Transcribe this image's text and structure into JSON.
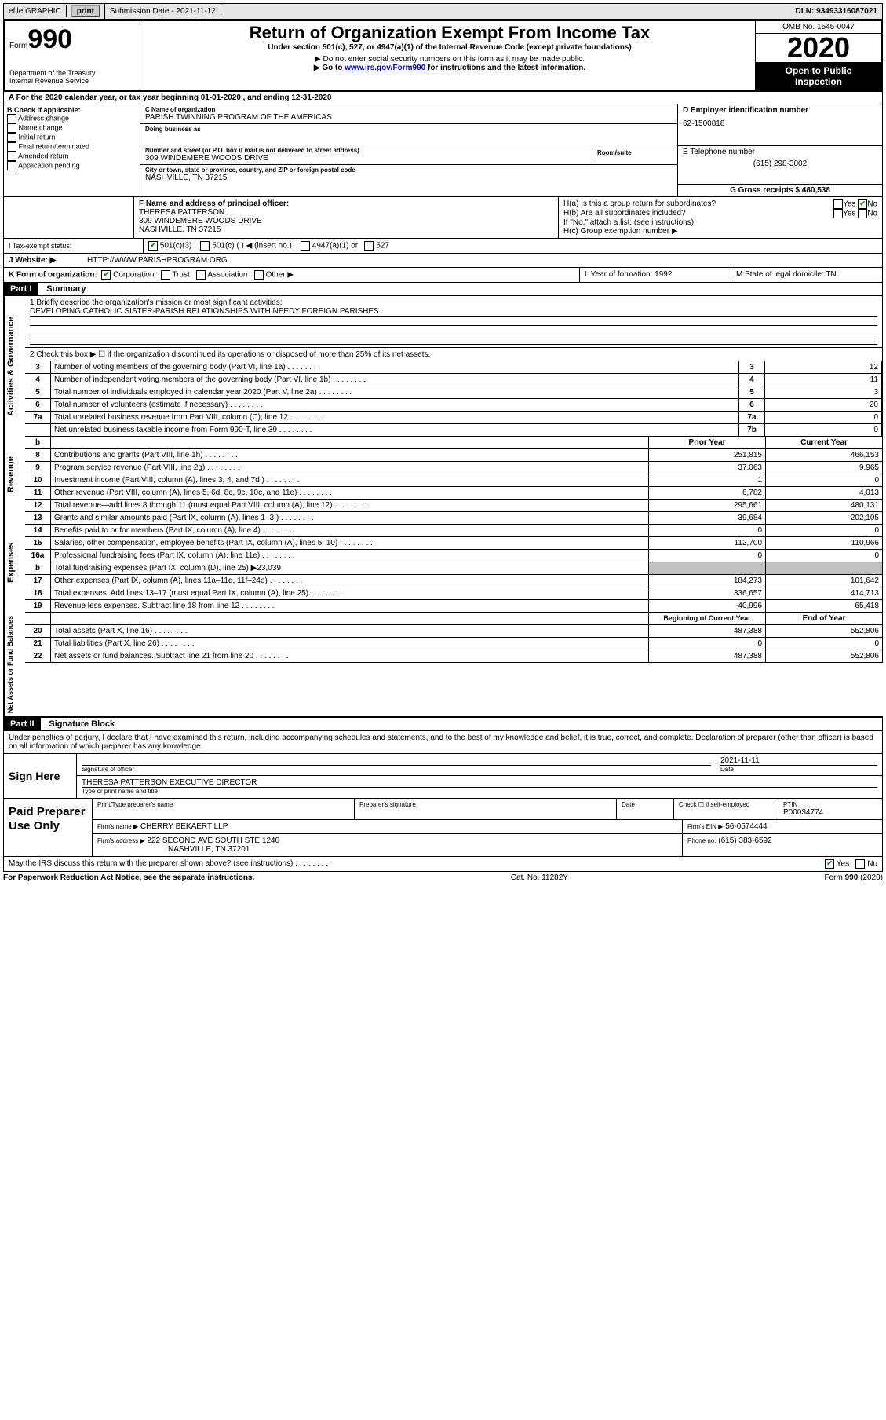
{
  "header_bar": {
    "efile_label": "efile GRAPHIC",
    "print_btn": "print",
    "submission_label": "Submission Date - 2021-11-12",
    "dln": "DLN: 93493316087021"
  },
  "form_header": {
    "form_word": "Form",
    "form_number": "990",
    "dept": "Department of the Treasury",
    "irs": "Internal Revenue Service",
    "title": "Return of Organization Exempt From Income Tax",
    "subtitle": "Under section 501(c), 527, or 4947(a)(1) of the Internal Revenue Code (except private foundations)",
    "note1": "▶ Do not enter social security numbers on this form as it may be made public.",
    "note2_pre": "▶ Go to ",
    "note2_link": "www.irs.gov/Form990",
    "note2_post": " for instructions and the latest information.",
    "omb": "OMB No. 1545-0047",
    "year": "2020",
    "inspection1": "Open to Public",
    "inspection2": "Inspection"
  },
  "row_a": "A   For the 2020 calendar year, or tax year beginning 01-01-2020    , and ending 12-31-2020",
  "check_b": {
    "title": "B Check if applicable:",
    "items": [
      "Address change",
      "Name change",
      "Initial return",
      "Final return/terminated",
      "Amended return",
      "Application pending"
    ]
  },
  "name_block": {
    "c_label": "C Name of organization",
    "c_value": "PARISH TWINNING PROGRAM OF THE AMERICAS",
    "dba_label": "Doing business as",
    "addr_label": "Number and street (or P.O. box if mail is not delivered to street address)",
    "room_label": "Room/suite",
    "addr_value": "309 WINDEMERE WOODS DRIVE",
    "city_label": "City or town, state or province, country, and ZIP or foreign postal code",
    "city_value": "NASHVILLE, TN  37215"
  },
  "right_block": {
    "d_label": "D Employer identification number",
    "d_value": "62-1500818",
    "e_label": "E Telephone number",
    "e_value": "(615) 298-3002",
    "g_label": "G Gross receipts $ 480,538"
  },
  "officer": {
    "f_label": "F Name and address of principal officer:",
    "name": "THERESA PATTERSON",
    "addr": "309 WINDEMERE WOODS DRIVE",
    "city": "NASHVILLE, TN  37215"
  },
  "h_block": {
    "ha": "H(a)  Is this a group return for subordinates?",
    "hb": "H(b)  Are all subordinates included?",
    "hb_note": "If \"No,\" attach a list. (see instructions)",
    "hc": "H(c)  Group exemption number ▶",
    "yes": "Yes",
    "no": "No"
  },
  "tax_status": {
    "i_label": "I   Tax-exempt status:",
    "opts": [
      "501(c)(3)",
      "501(c) (  ) ◀ (insert no.)",
      "4947(a)(1) or",
      "527"
    ]
  },
  "website": {
    "j_label": "J   Website: ▶",
    "value": "HTTP://WWW.PARISHPROGRAM.ORG"
  },
  "row_k": {
    "k_label": "K Form of organization:",
    "opts": [
      "Corporation",
      "Trust",
      "Association",
      "Other ▶"
    ],
    "l_label": "L Year of formation: 1992",
    "m_label": "M State of legal domicile: TN"
  },
  "part1": {
    "header": "Part I",
    "title": "Summary",
    "line1_label": "1   Briefly describe the organization's mission or most significant activities:",
    "line1_value": "DEVELOPING CATHOLIC SISTER-PARISH RELATIONSHIPS WITH NEEDY FOREIGN PARISHES.",
    "line2": "2   Check this box ▶ ☐  if the organization discontinued its operations or disposed of more than 25% of its net assets.",
    "gov": {
      "section": "Activities & Governance",
      "rows": [
        {
          "n": "3",
          "d": "Number of voting members of the governing body (Part VI, line 1a)",
          "l": "3",
          "v": "12"
        },
        {
          "n": "4",
          "d": "Number of independent voting members of the governing body (Part VI, line 1b)",
          "l": "4",
          "v": "11"
        },
        {
          "n": "5",
          "d": "Total number of individuals employed in calendar year 2020 (Part V, line 2a)",
          "l": "5",
          "v": "3"
        },
        {
          "n": "6",
          "d": "Total number of volunteers (estimate if necessary)",
          "l": "6",
          "v": "20"
        },
        {
          "n": "7a",
          "d": "Total unrelated business revenue from Part VIII, column (C), line 12",
          "l": "7a",
          "v": "0"
        },
        {
          "n": "",
          "d": "Net unrelated business taxable income from Form 990-T, line 39",
          "l": "7b",
          "v": "0"
        }
      ]
    },
    "rev": {
      "section": "Revenue",
      "header_b": "b",
      "header_prior": "Prior Year",
      "header_curr": "Current Year",
      "rows": [
        {
          "n": "8",
          "d": "Contributions and grants (Part VIII, line 1h)",
          "p": "251,815",
          "c": "466,153"
        },
        {
          "n": "9",
          "d": "Program service revenue (Part VIII, line 2g)",
          "p": "37,063",
          "c": "9,965"
        },
        {
          "n": "10",
          "d": "Investment income (Part VIII, column (A), lines 3, 4, and 7d )",
          "p": "1",
          "c": "0"
        },
        {
          "n": "11",
          "d": "Other revenue (Part VIII, column (A), lines 5, 6d, 8c, 9c, 10c, and 11e)",
          "p": "6,782",
          "c": "4,013"
        },
        {
          "n": "12",
          "d": "Total revenue—add lines 8 through 11 (must equal Part VIII, column (A), line 12)",
          "p": "295,661",
          "c": "480,131"
        }
      ]
    },
    "exp": {
      "section": "Expenses",
      "rows": [
        {
          "n": "13",
          "d": "Grants and similar amounts paid (Part IX, column (A), lines 1–3 )",
          "p": "39,684",
          "c": "202,105"
        },
        {
          "n": "14",
          "d": "Benefits paid to or for members (Part IX, column (A), line 4)",
          "p": "0",
          "c": "0"
        },
        {
          "n": "15",
          "d": "Salaries, other compensation, employee benefits (Part IX, column (A), lines 5–10)",
          "p": "112,700",
          "c": "110,966"
        },
        {
          "n": "16a",
          "d": "Professional fundraising fees (Part IX, column (A), line 11e)",
          "p": "0",
          "c": "0"
        },
        {
          "n": "b",
          "d": "Total fundraising expenses (Part IX, column (D), line 25) ▶23,039",
          "p": "",
          "c": "",
          "shaded": true
        },
        {
          "n": "17",
          "d": "Other expenses (Part IX, column (A), lines 11a–11d, 11f–24e)",
          "p": "184,273",
          "c": "101,642"
        },
        {
          "n": "18",
          "d": "Total expenses. Add lines 13–17 (must equal Part IX, column (A), line 25)",
          "p": "336,657",
          "c": "414,713"
        },
        {
          "n": "19",
          "d": "Revenue less expenses. Subtract line 18 from line 12",
          "p": "-40,996",
          "c": "65,418"
        }
      ]
    },
    "net": {
      "section": "Net Assets or Fund Balances",
      "header_beg": "Beginning of Current Year",
      "header_end": "End of Year",
      "rows": [
        {
          "n": "20",
          "d": "Total assets (Part X, line 16)",
          "p": "487,388",
          "c": "552,806"
        },
        {
          "n": "21",
          "d": "Total liabilities (Part X, line 26)",
          "p": "0",
          "c": "0"
        },
        {
          "n": "22",
          "d": "Net assets or fund balances. Subtract line 21 from line 20",
          "p": "487,388",
          "c": "552,806"
        }
      ]
    }
  },
  "part2": {
    "header": "Part II",
    "title": "Signature Block",
    "declaration": "Under penalties of perjury, I declare that I have examined this return, including accompanying schedules and statements, and to the best of my knowledge and belief, it is true, correct, and complete. Declaration of preparer (other than officer) is based on all information of which preparer has any knowledge.",
    "sign_here": "Sign Here",
    "sig_officer_label": "Signature of officer",
    "date_label": "Date",
    "sig_date": "2021-11-11",
    "typed_name": "THERESA PATTERSON  EXECUTIVE DIRECTOR",
    "typed_label": "Type or print name and title",
    "paid": "Paid Preparer Use Only",
    "prep_name_label": "Print/Type preparer's name",
    "prep_sig_label": "Preparer's signature",
    "prep_date_label": "Date",
    "check_self": "Check ☐ if self-employed",
    "ptin_label": "PTIN",
    "ptin_value": "P00034774",
    "firm_name_label": "Firm's name      ▶",
    "firm_name": "CHERRY BEKAERT LLP",
    "firm_ein_label": "Firm's EIN ▶",
    "firm_ein": "56-0574444",
    "firm_addr_label": "Firm's address  ▶",
    "firm_addr1": "222 SECOND AVE SOUTH STE 1240",
    "firm_addr2": "NASHVILLE, TN  37201",
    "phone_label": "Phone no.",
    "phone": "(615) 383-6592",
    "discuss": "May the IRS discuss this return with the preparer shown above? (see instructions)"
  },
  "footer": {
    "left": "For Paperwork Reduction Act Notice, see the separate instructions.",
    "mid": "Cat. No. 11282Y",
    "right": "Form 990 (2020)"
  }
}
